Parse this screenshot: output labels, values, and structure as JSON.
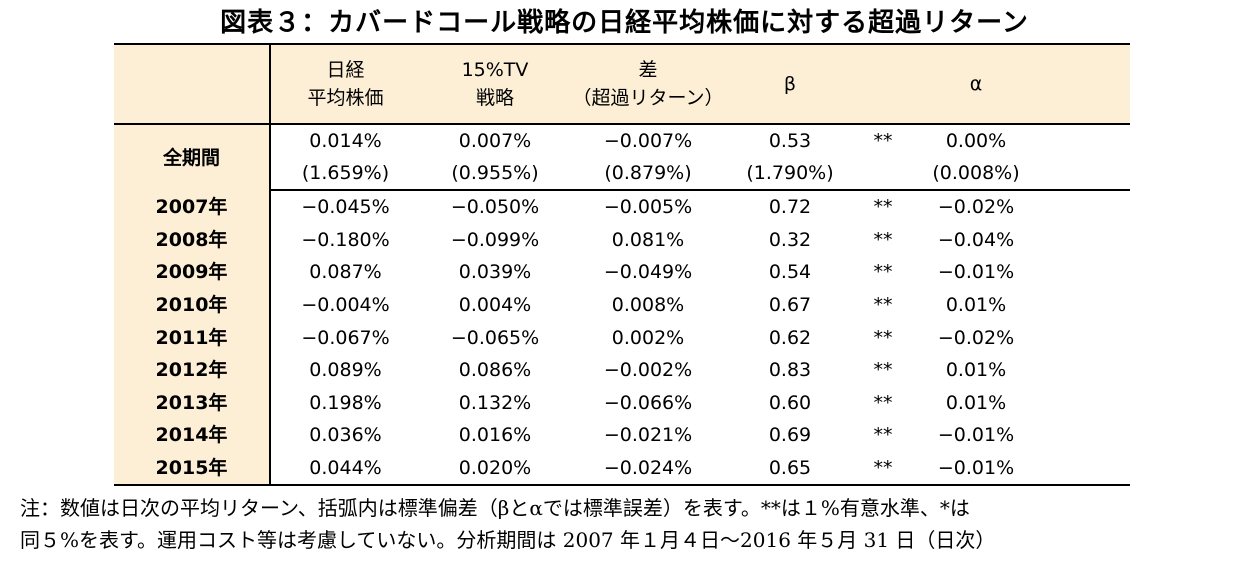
{
  "title": "図表３：カバードコール戦略の日経平均株価に対する超過リターン",
  "header": {
    "nikkei_line1": "日経",
    "nikkei_line2": "平均株価",
    "tv_line1": "15%TV",
    "tv_line2": "戦略",
    "diff_line1": "差",
    "diff_line2": "（超過リターン）",
    "beta": "β",
    "alpha": "α"
  },
  "overall": {
    "label": "全期間",
    "nikkei": "0.014%",
    "nikkei_sd": "(1.659%)",
    "tv": "0.007%",
    "tv_sd": "(0.955%)",
    "diff": "−0.007%",
    "diff_sd": "(0.879%)",
    "beta": "0.53",
    "beta_se": "(1.790%)",
    "sig": "**",
    "alpha": "0.00%",
    "alpha_se": "(0.008%)"
  },
  "rows": [
    {
      "year": "2007年",
      "nikkei": "−0.045%",
      "tv": "−0.050%",
      "diff": "−0.005%",
      "beta": "0.72",
      "sig": "**",
      "alpha": "−0.02%"
    },
    {
      "year": "2008年",
      "nikkei": "−0.180%",
      "tv": "−0.099%",
      "diff": "0.081%",
      "beta": "0.32",
      "sig": "**",
      "alpha": "−0.04%"
    },
    {
      "year": "2009年",
      "nikkei": "0.087%",
      "tv": "0.039%",
      "diff": "−0.049%",
      "beta": "0.54",
      "sig": "**",
      "alpha": "−0.01%"
    },
    {
      "year": "2010年",
      "nikkei": "−0.004%",
      "tv": "0.004%",
      "diff": "0.008%",
      "beta": "0.67",
      "sig": "**",
      "alpha": "0.01%"
    },
    {
      "year": "2011年",
      "nikkei": "−0.067%",
      "tv": "−0.065%",
      "diff": "0.002%",
      "beta": "0.62",
      "sig": "**",
      "alpha": "−0.02%"
    },
    {
      "year": "2012年",
      "nikkei": "0.089%",
      "tv": "0.086%",
      "diff": "−0.002%",
      "beta": "0.83",
      "sig": "**",
      "alpha": "0.01%"
    },
    {
      "year": "2013年",
      "nikkei": "0.198%",
      "tv": "0.132%",
      "diff": "−0.066%",
      "beta": "0.60",
      "sig": "**",
      "alpha": "0.01%"
    },
    {
      "year": "2014年",
      "nikkei": "0.036%",
      "tv": "0.016%",
      "diff": "−0.021%",
      "beta": "0.69",
      "sig": "**",
      "alpha": "−0.01%"
    },
    {
      "year": "2015年",
      "nikkei": "0.044%",
      "tv": "0.020%",
      "diff": "−0.024%",
      "beta": "0.65",
      "sig": "**",
      "alpha": "−0.01%"
    }
  ],
  "note": {
    "line1": "注：数値は日次の平均リターン、括弧内は標準偏差（βとαでは標準誤差）を表す。**は１%有意水準、*は",
    "line2": "同５%を表す。運用コスト等は考慮していない。分析期間は 2007 年１月４日～2016 年５月 31 日（日次）"
  },
  "colors": {
    "header_bg": "#fcefd6",
    "rule": "#000000"
  }
}
